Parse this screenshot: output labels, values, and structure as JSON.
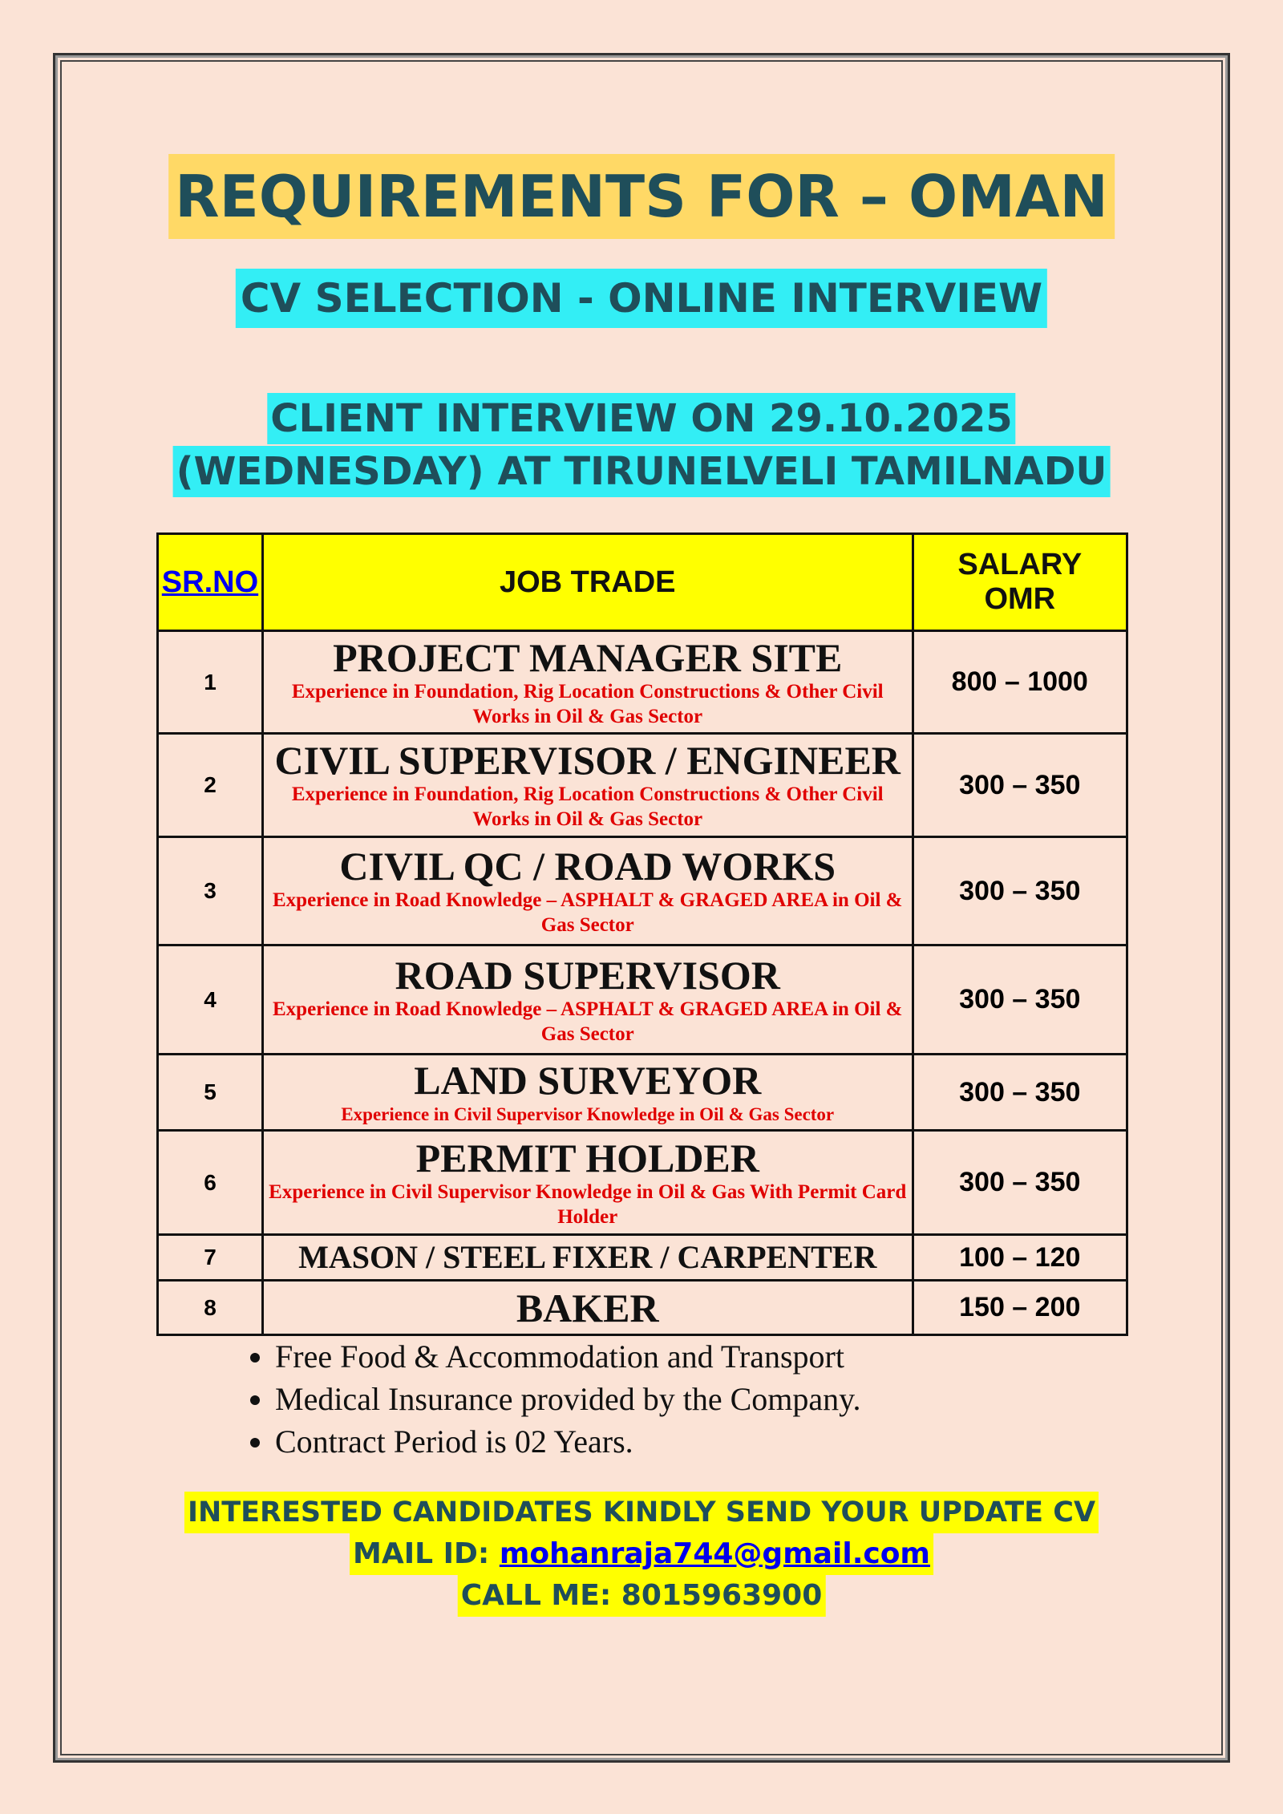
{
  "title": "REQUIREMENTS FOR – OMAN",
  "subtitle": "CV SELECTION - ONLINE INTERVIEW",
  "interview_line1": "CLIENT INTERVIEW ON 29.10.2025",
  "interview_line2": "(WEDNESDAY) AT TIRUNELVELI TAMILNADU",
  "table": {
    "headers": {
      "sr": "SR.NO",
      "trade": "JOB TRADE",
      "salary_line1": "SALARY",
      "salary_line2": "OMR"
    },
    "rows": [
      {
        "sr": "1",
        "trade": "PROJECT MANAGER SITE",
        "desc": "Experience in Foundation, Rig Location Constructions & Other Civil Works in Oil & Gas Sector",
        "salary": "800 – 1000"
      },
      {
        "sr": "2",
        "trade": "CIVIL SUPERVISOR / ENGINEER",
        "desc": "Experience in Foundation, Rig Location Constructions & Other Civil Works in Oil & Gas Sector",
        "salary": "300 – 350"
      },
      {
        "sr": "3",
        "trade": "CIVIL QC / ROAD WORKS",
        "desc": "Experience in Road Knowledge – ASPHALT & GRAGED AREA in Oil & Gas Sector",
        "salary": "300 – 350"
      },
      {
        "sr": "4",
        "trade": "ROAD SUPERVISOR",
        "desc": "Experience in Road Knowledge – ASPHALT & GRAGED AREA in Oil & Gas Sector",
        "salary": "300 – 350"
      },
      {
        "sr": "5",
        "trade": "LAND SURVEYOR",
        "desc": "Experience in Civil Supervisor Knowledge in Oil & Gas Sector",
        "salary": "300 – 350"
      },
      {
        "sr": "6",
        "trade": "PERMIT HOLDER",
        "desc": "Experience in Civil Supervisor Knowledge in Oil & Gas With Permit Card Holder",
        "salary": "300 – 350"
      },
      {
        "sr": "7",
        "trade": "MASON / STEEL FIXER / CARPENTER",
        "desc": "",
        "salary": "100 – 120"
      },
      {
        "sr": "8",
        "trade": "BAKER",
        "desc": "",
        "salary": "150 – 200"
      }
    ]
  },
  "benefits": [
    "Free Food & Accommodation and Transport",
    "Medical Insurance provided by the Company.",
    "Contract Period is 02 Years."
  ],
  "footer": {
    "line1": "INTERESTED CANDIDATES KINDLY SEND YOUR UPDATE CV",
    "mail_label": "MAIL ID: ",
    "email": "mohanraja744@gmail.com",
    "call": "CALL ME: 8015963900"
  }
}
